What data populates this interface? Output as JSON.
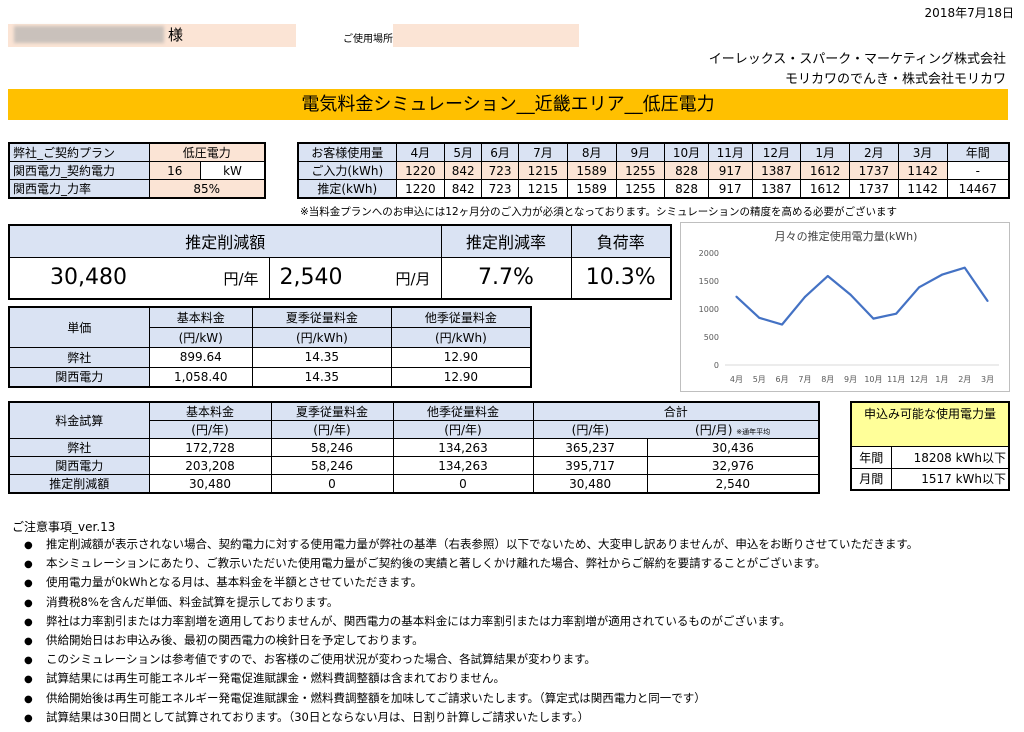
{
  "header": {
    "date": "2018年7月18日",
    "customer_suffix": "様",
    "place_label": "ご使用場所",
    "company_line1": "イーレックス・スパーク・マーケティング株式会社",
    "company_line2": "モリカワのでんき・株式会社モリカワ",
    "title": "電気料金シミュレーション__近畿エリア__低圧電力"
  },
  "plan": {
    "rows": [
      {
        "label": "弊社_ご契約プラン",
        "value": "低圧電力"
      },
      {
        "label": "関西電力_契約電力",
        "value": "16",
        "unit": "kW"
      },
      {
        "label": "関西電力_力率",
        "value": "85%"
      }
    ]
  },
  "usage": {
    "header_label": "お客様使用量",
    "months": [
      "4月",
      "5月",
      "6月",
      "7月",
      "8月",
      "9月",
      "10月",
      "11月",
      "12月",
      "1月",
      "2月",
      "3月"
    ],
    "annual_label": "年間",
    "input_label": "ご入力(kWh)",
    "input_values": [
      "1220",
      "842",
      "723",
      "1215",
      "1589",
      "1255",
      "828",
      "917",
      "1387",
      "1612",
      "1737",
      "1142"
    ],
    "input_annual": "-",
    "est_label": "推定(kWh)",
    "est_values": [
      "1220",
      "842",
      "723",
      "1215",
      "1589",
      "1255",
      "828",
      "917",
      "1387",
      "1612",
      "1737",
      "1142"
    ],
    "est_annual": "14467",
    "note": "※当料金プランへのお申込には12ヶ月分のご入力が必須となっております。シミュレーションの精度を高める必要がございます"
  },
  "summary": {
    "reduction_label": "推定削減額",
    "rate_label": "推定削減率",
    "load_label": "負荷率",
    "yearly_value": "30,480",
    "yearly_unit": "円/年",
    "monthly_value": "2,540",
    "monthly_unit": "円/月",
    "rate_value": "7.7%",
    "load_value": "10.3%"
  },
  "unit_price": {
    "head_label": "単価",
    "cols": [
      {
        "name": "基本料金",
        "unit": "(円/kW)"
      },
      {
        "name": "夏季従量料金",
        "unit": "(円/kWh)"
      },
      {
        "name": "他季従量料金",
        "unit": "(円/kWh)"
      }
    ],
    "rows": [
      {
        "label": "弊社",
        "values": [
          "899.64",
          "14.35",
          "12.90"
        ]
      },
      {
        "label": "関西電力",
        "values": [
          "1,058.40",
          "14.35",
          "12.90"
        ]
      }
    ]
  },
  "calc": {
    "head_label": "料金試算",
    "cols": [
      {
        "name": "基本料金",
        "unit": "(円/年)"
      },
      {
        "name": "夏季従量料金",
        "unit": "(円/年)"
      },
      {
        "name": "他季従量料金",
        "unit": "(円/年)"
      }
    ],
    "total_label": "合計",
    "total_unit_year": "(円/年)",
    "total_unit_month": "(円/月)",
    "month_note": "※通年平均",
    "rows": [
      {
        "label": "弊社",
        "values": [
          "172,728",
          "58,246",
          "134,263",
          "365,237",
          "30,436"
        ]
      },
      {
        "label": "関西電力",
        "values": [
          "203,208",
          "58,246",
          "134,263",
          "395,717",
          "32,976"
        ]
      },
      {
        "label": "推定削減額",
        "values": [
          "30,480",
          "0",
          "0",
          "30,480",
          "2,540"
        ]
      }
    ]
  },
  "available": {
    "title": "申込み可能な使用電力量",
    "rows": [
      {
        "label": "年間",
        "value": "18208 kWh以下"
      },
      {
        "label": "月間",
        "value": "1517 kWh以下"
      }
    ]
  },
  "chart_data": {
    "type": "line",
    "title": "月々の推定使用電力量(kWh)",
    "categories": [
      "4月",
      "5月",
      "6月",
      "7月",
      "8月",
      "9月",
      "10月",
      "11月",
      "12月",
      "1月",
      "2月",
      "3月"
    ],
    "values": [
      1220,
      842,
      723,
      1215,
      1589,
      1255,
      828,
      917,
      1387,
      1612,
      1737,
      1142
    ],
    "yticks": [
      "0",
      "500",
      "1000",
      "1500",
      "2000"
    ],
    "ylim": [
      0,
      2000
    ],
    "color": "#4472c4",
    "grid": false
  },
  "notes": {
    "title": "ご注意事項_ver.13",
    "items": [
      "推定削減額が表示されない場合、契約電力に対する使用電力量が弊社の基準（右表参照）以下でないため、大変申し訳ありませんが、申込をお断りさせていただきます。",
      "本シミュレーションにあたり、ご教示いただいた使用電力量がご契約後の実績と著しくかけ離れた場合、弊社からご解約を要請することがございます。",
      "使用電力量が0kWhとなる月は、基本料金を半額とさせていただきます。",
      "消費税8%を含んだ単価、料金試算を提示しております。",
      "弊社は力率割引または力率割増を適用しておりませんが、関西電力の基本料金には力率割引または力率割増が適用されているものがございます。",
      "供給開始日はお申込み後、最初の関西電力の検針日を予定しております。",
      "このシミュレーションは参考値ですので、お客様のご使用状況が変わった場合、各試算結果が変わります。",
      "試算結果には再生可能エネルギー発電促進賦課金・燃料費調整額は含まれておりません。",
      "供給開始後は再生可能エネルギー発電促進賦課金・燃料費調整額を加味してご請求いたします。（算定式は関西電力と同一です）",
      "試算結果は30日間として試算されております。（30日とならない月は、日割り計算しご請求いたします。）"
    ]
  }
}
